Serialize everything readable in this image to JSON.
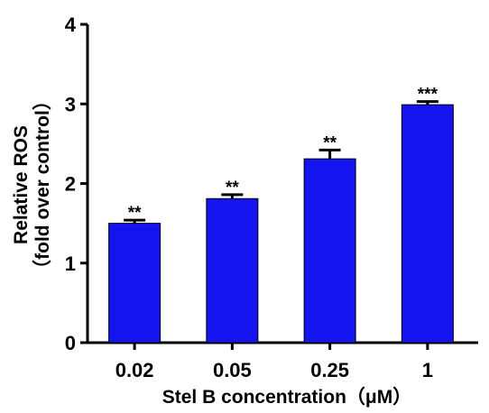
{
  "chart_data": {
    "type": "bar",
    "categories": [
      "0.02",
      "0.05",
      "0.25",
      "1"
    ],
    "values": [
      1.5,
      1.81,
      2.31,
      2.99
    ],
    "errors": [
      0.04,
      0.05,
      0.11,
      0.04
    ],
    "significance": [
      "**",
      "**",
      "**",
      "***"
    ],
    "title": "",
    "xlabel": "Stel B concentration（μM）",
    "ylabel": "Relative ROS",
    "ylabel_line2": "（fold over control）",
    "ylim": [
      0,
      4
    ],
    "yticks": [
      "0",
      "1",
      "2",
      "3",
      "4"
    ],
    "bar_color": "#1414f0",
    "grid": false,
    "legend": "none"
  }
}
